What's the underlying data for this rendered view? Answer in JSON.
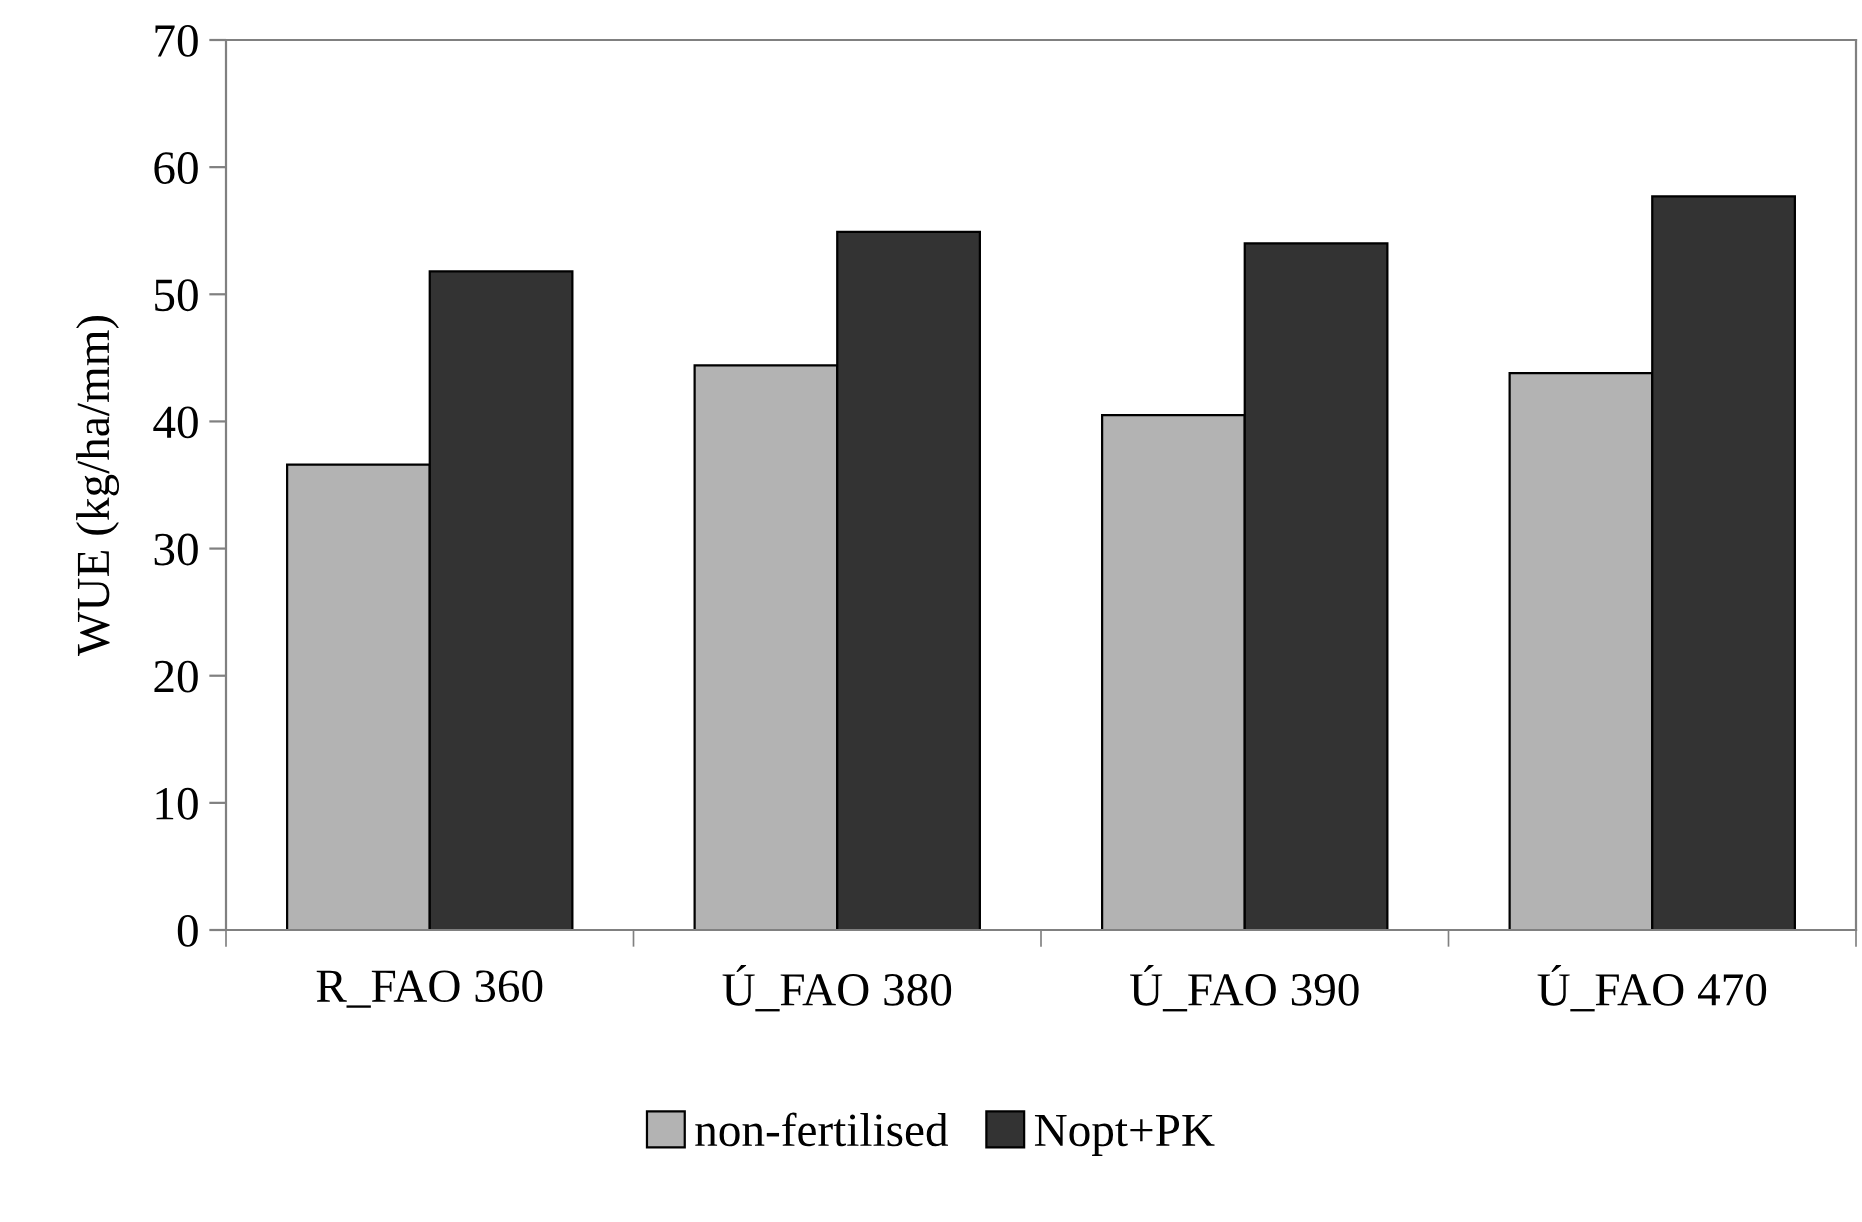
{
  "chart_data": {
    "type": "bar",
    "ylabel": "WUE (kg/ha/mm)",
    "categories": [
      "R_FAO 360",
      "Ú_FAO 380",
      "Ú_FAO 390",
      "Ú_FAO 470"
    ],
    "series": [
      {
        "name": "non-fertilised",
        "color": "#b3b3b3",
        "values": [
          36.6,
          44.4,
          40.5,
          43.8
        ]
      },
      {
        "name": "Nopt+PK",
        "color": "#333333",
        "values": [
          51.8,
          54.9,
          54.0,
          57.7
        ]
      }
    ],
    "ylim": [
      0,
      70
    ],
    "yticks": [
      0,
      10,
      20,
      30,
      40,
      50,
      60,
      70
    ],
    "grid": false,
    "legend": "bottom"
  }
}
